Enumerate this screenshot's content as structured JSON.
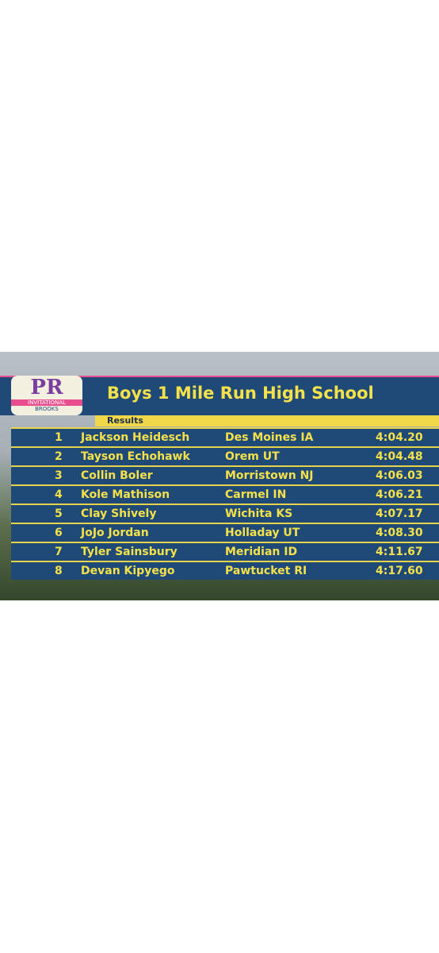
{
  "header": {
    "logo": "PR",
    "logo_sub": "INVITATIONAL",
    "sponsor": "BROOKS",
    "title": "Boys 1 Mile Run High School",
    "subtitle": "Results"
  },
  "table": {
    "rows": [
      [
        "1",
        "Jackson Heidesch",
        "Des Moines IA",
        "4:04.20"
      ],
      [
        "2",
        "Tayson Echohawk",
        "Orem UT",
        "4:04.48"
      ],
      [
        "3",
        "Collin Boler",
        "Morristown NJ",
        "4:06.03"
      ],
      [
        "4",
        "Kole Mathison",
        "Carmel IN",
        "4:06.21"
      ],
      [
        "5",
        "Clay Shively",
        "Wichita KS",
        "4:07.17"
      ],
      [
        "6",
        "JoJo Jordan",
        "Holladay UT",
        "4:08.30"
      ],
      [
        "7",
        "Tyler Sainsbury",
        "Meridian ID",
        "4:11.67"
      ],
      [
        "8",
        "Devan Kipyego",
        "Pawtucket RI",
        "4:17.60"
      ]
    ]
  }
}
